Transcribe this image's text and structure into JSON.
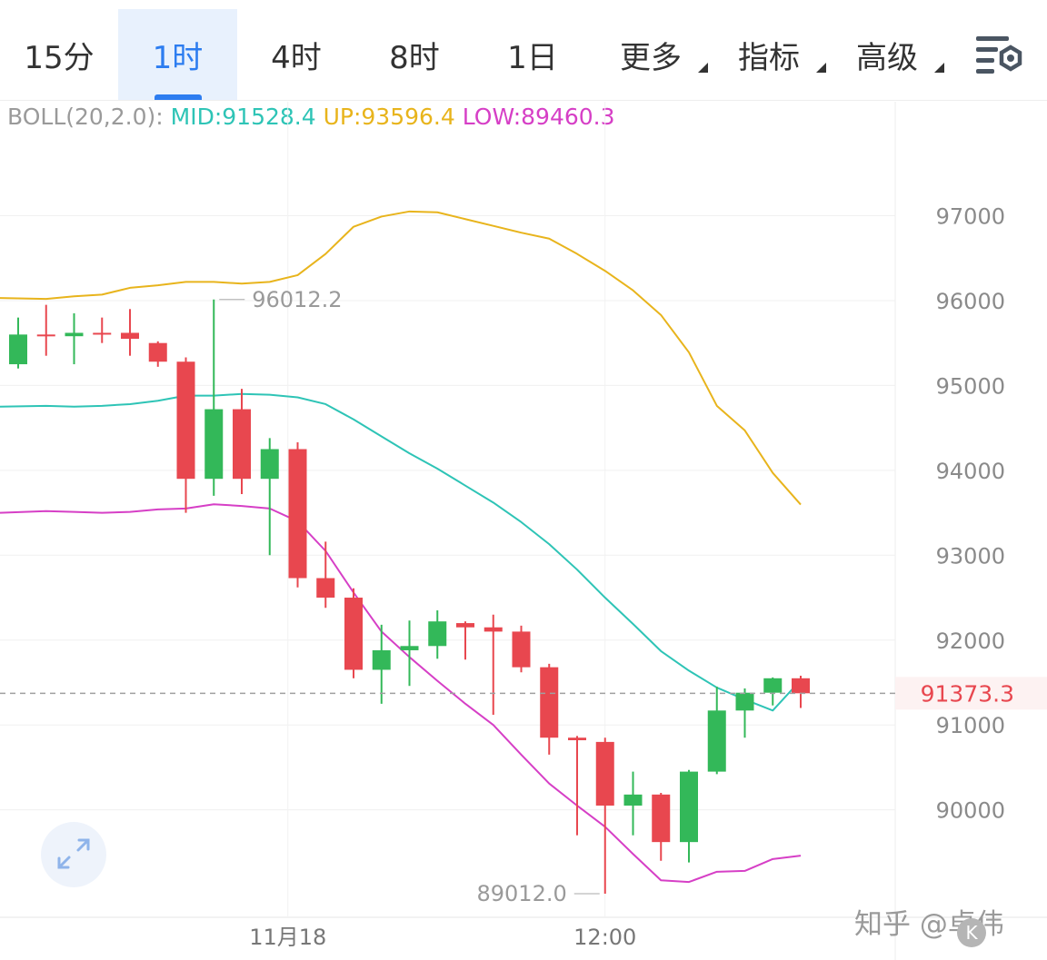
{
  "tabs": [
    {
      "label": "15分",
      "active": false,
      "has_menu": false
    },
    {
      "label": "1时",
      "active": true,
      "has_menu": false
    },
    {
      "label": "4时",
      "active": false,
      "has_menu": false
    },
    {
      "label": "8时",
      "active": false,
      "has_menu": false
    },
    {
      "label": "1日",
      "active": false,
      "has_menu": false
    },
    {
      "label": "更多",
      "active": false,
      "has_menu": true
    },
    {
      "label": "指标",
      "active": false,
      "has_menu": true
    },
    {
      "label": "高级",
      "active": false,
      "has_menu": true
    }
  ],
  "settings_icon": "chart-settings-icon",
  "indicator": {
    "name": "BOLL(20,2.0):",
    "mid": "MID:91528.4",
    "up": "UP:93596.4",
    "low": "LOW:89460.3"
  },
  "colors": {
    "up_candle": "#33b859",
    "down_candle": "#e8474f",
    "mid": "#2ec4b6",
    "upper": "#e8b41c",
    "lower": "#d63fc6",
    "active_tab": "#2d7df0",
    "price_label": "#e8474f"
  },
  "chart_data": {
    "type": "candlestick",
    "interval": "1时",
    "y_ticks": [
      "97000",
      "96000",
      "95000",
      "94000",
      "93000",
      "92000",
      "91000",
      "90000"
    ],
    "ylim": [
      88800,
      97900
    ],
    "x_labels": [
      {
        "label": "11月18",
        "index": 9
      },
      {
        "label": "12:00",
        "index": 21
      }
    ],
    "candles": [
      {
        "o": 95250,
        "h": 95800,
        "l": 95200,
        "c": 95600
      },
      {
        "o": 95600,
        "h": 95950,
        "l": 95350,
        "c": 95580
      },
      {
        "o": 95580,
        "h": 95850,
        "l": 95250,
        "c": 95620
      },
      {
        "o": 95620,
        "h": 95800,
        "l": 95500,
        "c": 95600
      },
      {
        "o": 95620,
        "h": 95900,
        "l": 95350,
        "c": 95550
      },
      {
        "o": 95500,
        "h": 95520,
        "l": 95220,
        "c": 95280
      },
      {
        "o": 95280,
        "h": 95330,
        "l": 93500,
        "c": 93900
      },
      {
        "o": 93900,
        "h": 96012.2,
        "l": 93700,
        "c": 94720
      },
      {
        "o": 94720,
        "h": 94960,
        "l": 93720,
        "c": 93900
      },
      {
        "o": 93900,
        "h": 94380,
        "l": 93000,
        "c": 94250
      },
      {
        "o": 94250,
        "h": 94330,
        "l": 92620,
        "c": 92730
      },
      {
        "o": 92730,
        "h": 93160,
        "l": 92380,
        "c": 92500
      },
      {
        "o": 92500,
        "h": 92610,
        "l": 91550,
        "c": 91650
      },
      {
        "o": 91650,
        "h": 92180,
        "l": 91250,
        "c": 91880
      },
      {
        "o": 91880,
        "h": 92230,
        "l": 91460,
        "c": 91930
      },
      {
        "o": 91930,
        "h": 92350,
        "l": 91780,
        "c": 92220
      },
      {
        "o": 92200,
        "h": 92220,
        "l": 91770,
        "c": 92150
      },
      {
        "o": 92150,
        "h": 92300,
        "l": 91120,
        "c": 92100
      },
      {
        "o": 92100,
        "h": 92170,
        "l": 91620,
        "c": 91680
      },
      {
        "o": 91680,
        "h": 91720,
        "l": 90650,
        "c": 90850
      },
      {
        "o": 90850,
        "h": 90870,
        "l": 89700,
        "c": 90820
      },
      {
        "o": 90800,
        "h": 90850,
        "l": 89012.0,
        "c": 90050
      },
      {
        "o": 90050,
        "h": 90450,
        "l": 89700,
        "c": 90180
      },
      {
        "o": 90180,
        "h": 90200,
        "l": 89400,
        "c": 89620
      },
      {
        "o": 89620,
        "h": 90470,
        "l": 89380,
        "c": 90450
      },
      {
        "o": 90450,
        "h": 91450,
        "l": 90420,
        "c": 91170
      },
      {
        "o": 91170,
        "h": 91430,
        "l": 90850,
        "c": 91380
      },
      {
        "o": 91380,
        "h": 91560,
        "l": 91230,
        "c": 91550
      },
      {
        "o": 91550,
        "h": 91580,
        "l": 91200,
        "c": 91373.3
      }
    ],
    "boll_upper": [
      96030,
      96020,
      96050,
      96070,
      96150,
      96180,
      96220,
      96220,
      96200,
      96220,
      96300,
      96550,
      96870,
      96990,
      97050,
      97040,
      96960,
      96880,
      96800,
      96730,
      96550,
      96350,
      96120,
      95830,
      95390,
      94760,
      94470,
      93970,
      93596.4
    ],
    "boll_mid": [
      94750,
      94760,
      94750,
      94760,
      94780,
      94820,
      94880,
      94880,
      94900,
      94890,
      94860,
      94780,
      94600,
      94400,
      94200,
      94020,
      93820,
      93620,
      93390,
      93130,
      92830,
      92500,
      92190,
      91870,
      91640,
      91440,
      91300,
      91170,
      91528.4
    ],
    "boll_lower": [
      93500,
      93520,
      93510,
      93500,
      93510,
      93540,
      93550,
      93600,
      93580,
      93550,
      93400,
      93050,
      92560,
      92100,
      91800,
      91520,
      91250,
      91000,
      90650,
      90310,
      90050,
      89800,
      89480,
      89170,
      89150,
      89270,
      89280,
      89420,
      89460.3
    ],
    "high_marker": "96012.2",
    "low_marker": "89012.0",
    "last_price": "91373.3"
  },
  "expand_icon": "expand-arrows-icon",
  "watermark": {
    "text": "知乎 @卓伟",
    "logo": "K"
  }
}
